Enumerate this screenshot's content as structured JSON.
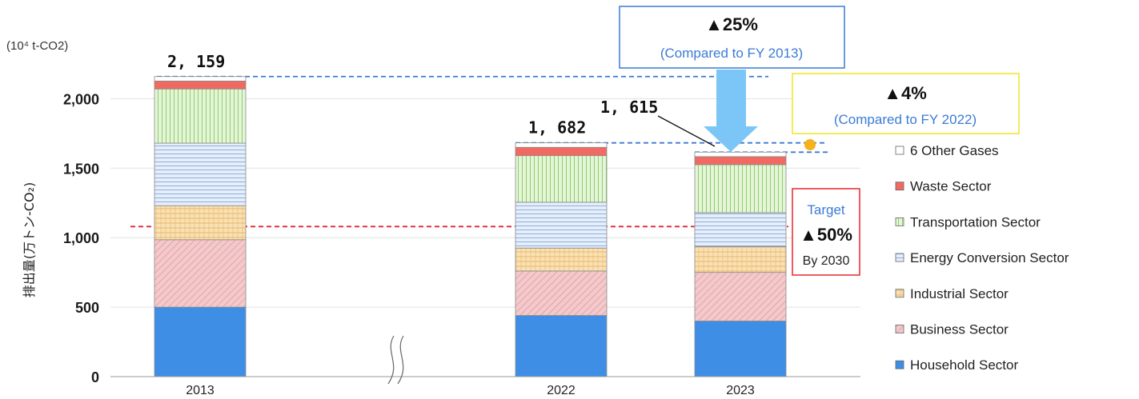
{
  "chart_data": {
    "type": "bar",
    "stacked": true,
    "unit_label": "(10⁴ t-CO2)",
    "ylabel": "排出量(万トン-CO₂)",
    "ylim": [
      0,
      2200
    ],
    "yticks": [
      0,
      500,
      1000,
      1500,
      2000
    ],
    "ytick_labels": [
      "0",
      "500",
      "1,000",
      "1,500",
      "2,000"
    ],
    "categories": [
      "2013",
      "2022",
      "2023"
    ],
    "axis_break_between": [
      "2013",
      "2022"
    ],
    "totals": [
      2159,
      1682,
      1615
    ],
    "total_labels": [
      "2, 159",
      "1, 682",
      "1, 615"
    ],
    "series": [
      {
        "name": "Household Sector",
        "key": "household",
        "values": [
          500,
          440,
          400
        ]
      },
      {
        "name": "Business Sector",
        "key": "business",
        "values": [
          485,
          320,
          350
        ]
      },
      {
        "name": "Industrial Sector",
        "key": "industrial",
        "values": [
          245,
          165,
          185
        ]
      },
      {
        "name": "Energy Conversion Sector",
        "key": "energy",
        "values": [
          450,
          330,
          245
        ]
      },
      {
        "name": "Transportation Sector",
        "key": "transport",
        "values": [
          390,
          335,
          345
        ]
      },
      {
        "name": "Waste Sector",
        "key": "waste",
        "values": [
          57,
          60,
          58
        ]
      },
      {
        "name": "6 Other Gases",
        "key": "other",
        "values": [
          32,
          32,
          32
        ]
      }
    ],
    "legend": {
      "placement": "right",
      "order": [
        "6 Other Gases",
        "Waste Sector",
        "Transportation Sector",
        "Energy Conversion Sector",
        "Industrial Sector",
        "Business Sector",
        "Household Sector"
      ]
    },
    "reference_lines": [
      {
        "value": 1080,
        "style": "dashed",
        "color": "#e8262b"
      },
      {
        "value": 2159,
        "style": "dashed",
        "color": "#3a7bd5"
      },
      {
        "value": 1682,
        "style": "dashed",
        "color": "#3a7bd5"
      },
      {
        "value": 1615,
        "style": "dashed",
        "color": "#3a7bd5"
      }
    ],
    "annotations": {
      "vs2013": {
        "value": "▲25%",
        "note": "(Compared to FY 2013)"
      },
      "vs2022": {
        "value": "▲4%",
        "note": "(Compared to FY 2022)"
      },
      "target": {
        "label": "Target",
        "value": "▲50%",
        "by": "By 2030"
      }
    },
    "colors": {
      "household": "#3e8ee6",
      "business": "#f3c9cb",
      "industrial": "#f8dcaa",
      "energy": "#c7d8f1",
      "transport": "#d9efc6",
      "waste": "#f06a62",
      "other": "#ffffff",
      "accent_blue": "#3a7bd5",
      "arrow_blue": "#7cc6f7",
      "target_red": "#e8262b",
      "yellow_box": "#f2e84b",
      "dot_orange": "#f6b21b"
    },
    "grid": true
  }
}
